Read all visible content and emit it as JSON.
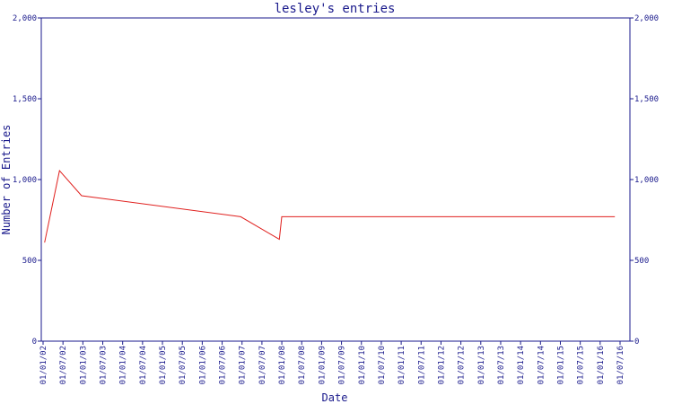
{
  "chart_data": {
    "type": "line",
    "title": "lesley's entries",
    "xlabel": "Date",
    "ylabel": "Number of Entries",
    "ylim": [
      0,
      2000
    ],
    "y_ticks": [
      "0",
      "500",
      "1,000",
      "1,500",
      "2,000"
    ],
    "y_tick_values": [
      0,
      500,
      1000,
      1500,
      2000
    ],
    "categories": [
      "01/01/02",
      "01/07/02",
      "01/01/03",
      "01/07/03",
      "01/01/04",
      "01/07/04",
      "01/01/05",
      "01/07/05",
      "01/01/06",
      "01/07/06",
      "01/01/07",
      "01/07/07",
      "01/01/08",
      "01/07/08",
      "01/01/09",
      "01/07/09",
      "01/01/10",
      "01/07/10",
      "01/01/11",
      "01/07/11",
      "01/01/12",
      "01/07/12",
      "01/01/13",
      "01/07/13",
      "01/01/14",
      "01/07/14",
      "01/01/15",
      "01/07/15",
      "01/01/16",
      "01/07/16"
    ],
    "series": [
      {
        "color": "#e0201e",
        "points": [
          [
            "2002-01-15",
            610
          ],
          [
            "2002-06-01",
            1055
          ],
          [
            "2002-12-20",
            900
          ],
          [
            "2006-12-20",
            770
          ],
          [
            "2007-12-10",
            630
          ],
          [
            "2008-01-01",
            770
          ],
          [
            "2016-05-15",
            770
          ]
        ]
      }
    ],
    "grid": false,
    "right_axis": true
  }
}
